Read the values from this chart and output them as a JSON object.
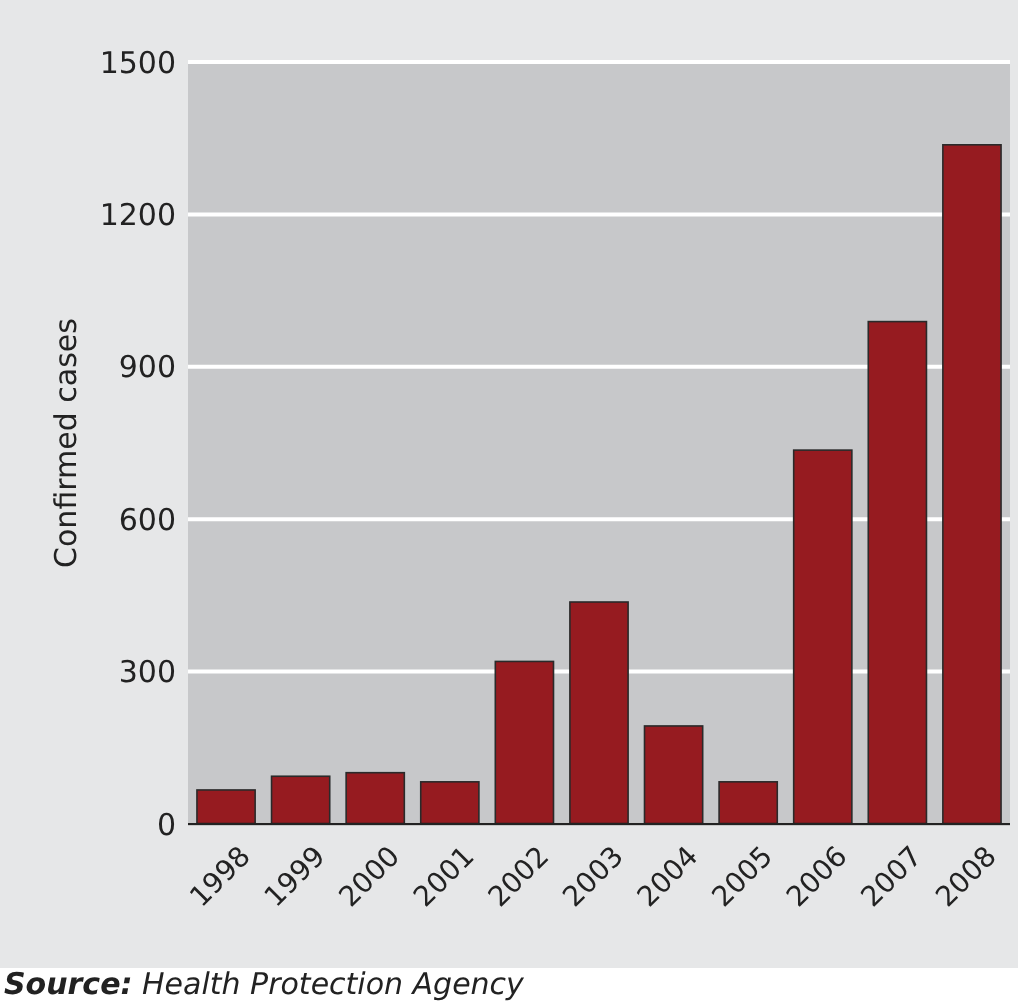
{
  "chart_data": {
    "type": "bar",
    "ylabel": "Confirmed cases",
    "categories": [
      "1998",
      "1999",
      "2000",
      "2001",
      "2002",
      "2003",
      "2004",
      "2005",
      "2006",
      "2007",
      "2008"
    ],
    "values": [
      67,
      94,
      101,
      83,
      320,
      437,
      193,
      83,
      736,
      989,
      1337
    ],
    "color": "#961b20",
    "ylim": [
      0,
      1500
    ],
    "yticks": [
      0,
      300,
      600,
      900,
      1200,
      1500
    ],
    "grid": "y",
    "annotations": [
      "Source: Health Protection Agency"
    ]
  }
}
